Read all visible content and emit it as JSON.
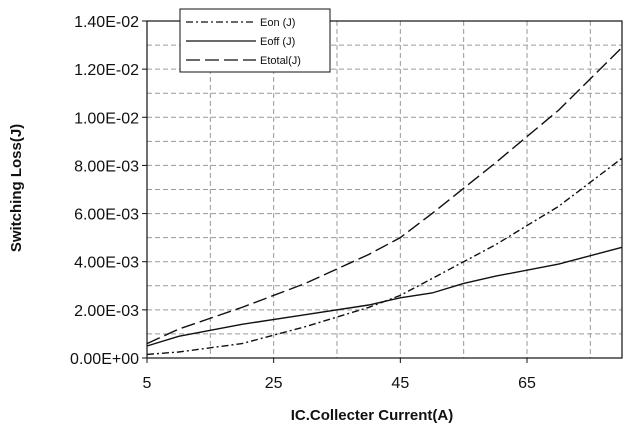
{
  "chart_data": {
    "type": "line",
    "xlabel": "IC.Collecter Current(A)",
    "ylabel": "Switching Loss(J)",
    "xlim": [
      5,
      80
    ],
    "ylim": [
      0,
      0.014
    ],
    "x_ticks": [
      5,
      25,
      45,
      65
    ],
    "x_tick_labels": [
      "5",
      "25",
      "45",
      "65"
    ],
    "y_ticks": [
      0,
      0.002,
      0.004,
      0.006,
      0.008,
      0.01,
      0.012,
      0.014
    ],
    "y_tick_labels": [
      "0.00E+00",
      "2.00E-03",
      "4.00E-03",
      "6.00E-03",
      "8.00E-03",
      "1.00E-02",
      "1.20E-02",
      "1.40E-02"
    ],
    "grid": true,
    "legend_position": "top-left",
    "series": [
      {
        "name": "Eon (J)",
        "dash": "dash-dot",
        "x": [
          5,
          10,
          20,
          30,
          40,
          45,
          50,
          60,
          70,
          80
        ],
        "y": [
          0.00015,
          0.00025,
          0.0006,
          0.0013,
          0.0021,
          0.0026,
          0.0033,
          0.0047,
          0.0063,
          0.0083
        ]
      },
      {
        "name": "Eoff (J)",
        "dash": "solid",
        "x": [
          5,
          10,
          20,
          30,
          40,
          45,
          50,
          55,
          60,
          70,
          80
        ],
        "y": [
          0.0005,
          0.0009,
          0.0014,
          0.0018,
          0.0022,
          0.0025,
          0.0027,
          0.0031,
          0.0034,
          0.0039,
          0.0046
        ]
      },
      {
        "name": "Etotal(J)",
        "dash": "long-dash",
        "x": [
          5,
          10,
          20,
          30,
          40,
          45,
          50,
          60,
          70,
          80
        ],
        "y": [
          0.0006,
          0.0012,
          0.0021,
          0.0031,
          0.0043,
          0.005,
          0.006,
          0.0081,
          0.0103,
          0.0129
        ]
      }
    ]
  }
}
